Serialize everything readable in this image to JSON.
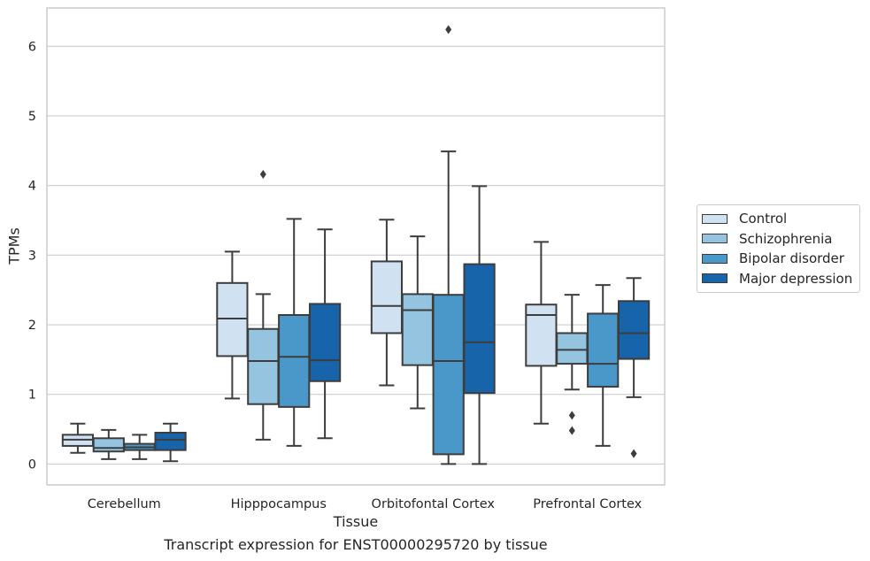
{
  "chart_data": {
    "type": "box",
    "title": "",
    "caption": "Transcript expression for ENST00000295720 by tissue",
    "xlabel": "Tissue",
    "ylabel": "TPMs",
    "ylim": [
      -0.3,
      6.55
    ],
    "yticks": [
      0,
      1,
      2,
      3,
      4,
      5,
      6
    ],
    "grid": "horizontal",
    "legend_placement": "right, outside plot",
    "categories": [
      "Cerebellum",
      "Hipppocampus",
      "Orbitofontal Cortex",
      "Prefrontal Cortex"
    ],
    "series": [
      {
        "name": "Control",
        "color": "#d0e1f2",
        "boxes": [
          {
            "whislo": 0.16,
            "q1": 0.26,
            "med": 0.35,
            "q3": 0.42,
            "whishi": 0.58,
            "fliers": []
          },
          {
            "whislo": 0.94,
            "q1": 1.55,
            "med": 2.09,
            "q3": 2.6,
            "whishi": 3.05,
            "fliers": []
          },
          {
            "whislo": 1.13,
            "q1": 1.88,
            "med": 2.27,
            "q3": 2.91,
            "whishi": 3.51,
            "fliers": []
          },
          {
            "whislo": 0.58,
            "q1": 1.41,
            "med": 2.14,
            "q3": 2.29,
            "whishi": 3.19,
            "fliers": []
          }
        ]
      },
      {
        "name": "Schizophrenia",
        "color": "#94c4df",
        "boxes": [
          {
            "whislo": 0.07,
            "q1": 0.18,
            "med": 0.23,
            "q3": 0.37,
            "whishi": 0.49,
            "fliers": []
          },
          {
            "whislo": 0.35,
            "q1": 0.86,
            "med": 1.48,
            "q3": 1.94,
            "whishi": 2.44,
            "fliers": [
              4.16
            ]
          },
          {
            "whislo": 0.8,
            "q1": 1.42,
            "med": 2.21,
            "q3": 2.44,
            "whishi": 3.27,
            "fliers": []
          },
          {
            "whislo": 1.07,
            "q1": 1.44,
            "med": 1.64,
            "q3": 1.88,
            "whishi": 2.43,
            "fliers": [
              0.7,
              0.48
            ]
          }
        ]
      },
      {
        "name": "Bipolar disorder",
        "color": "#4a98c9",
        "boxes": [
          {
            "whislo": 0.07,
            "q1": 0.2,
            "med": 0.24,
            "q3": 0.29,
            "whishi": 0.42,
            "fliers": []
          },
          {
            "whislo": 0.26,
            "q1": 0.82,
            "med": 1.54,
            "q3": 2.14,
            "whishi": 3.52,
            "fliers": []
          },
          {
            "whislo": 0.0,
            "q1": 0.14,
            "med": 1.48,
            "q3": 2.43,
            "whishi": 4.49,
            "fliers": [
              6.24
            ]
          },
          {
            "whislo": 0.26,
            "q1": 1.11,
            "med": 1.44,
            "q3": 2.16,
            "whishi": 2.57,
            "fliers": []
          }
        ]
      },
      {
        "name": "Major depression",
        "color": "#1764ab",
        "boxes": [
          {
            "whislo": 0.04,
            "q1": 0.2,
            "med": 0.35,
            "q3": 0.45,
            "whishi": 0.58,
            "fliers": []
          },
          {
            "whislo": 0.37,
            "q1": 1.19,
            "med": 1.49,
            "q3": 2.3,
            "whishi": 3.37,
            "fliers": []
          },
          {
            "whislo": 0.0,
            "q1": 1.02,
            "med": 1.75,
            "q3": 2.87,
            "whishi": 3.99,
            "fliers": []
          },
          {
            "whislo": 0.96,
            "q1": 1.51,
            "med": 1.88,
            "q3": 2.34,
            "whishi": 2.67,
            "fliers": [
              0.15
            ]
          }
        ]
      }
    ]
  }
}
